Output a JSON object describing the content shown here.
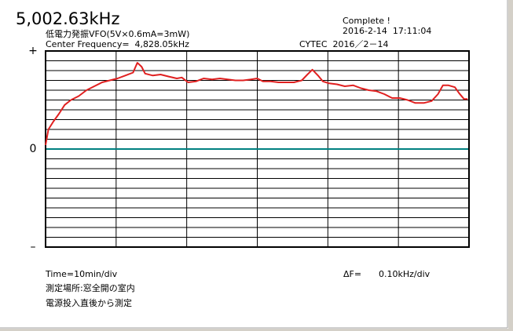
{
  "chart_data": {
    "type": "line",
    "title": "5,002.63kHz",
    "subtitle": "低電力発振VFO(5V×0.6mA=3mW)",
    "center_frequency": "Center Frequency=  4,828.05kHz",
    "status": "Complete !",
    "timestamp": "2016-2-14  17:11:04",
    "maker": "CYTEC  2016／2－14",
    "x_scale": "Time=10min/div",
    "y_scale_label": "ΔF=",
    "y_scale": "0.10kHz/div",
    "notes": [
      "測定場所:窓全開の室内",
      "電源投入直後から測定"
    ],
    "x": [
      0,
      0.4,
      1.1,
      1.9,
      2.7,
      3.6,
      4.7,
      5.8,
      6.9,
      8.0,
      9.1,
      10.2,
      11.3,
      12.4,
      13.0,
      13.6,
      14.1,
      15.2,
      16.3,
      17.4,
      18.6,
      19.3,
      20.2,
      21.3,
      22.4,
      23.6,
      24.7,
      25.8,
      26.9,
      28.0,
      29.1,
      30.0,
      30.8,
      31.9,
      33.0,
      34.1,
      35.2,
      36.3,
      37.1,
      37.8,
      38.6,
      39.3,
      40.2,
      41.3,
      42.4,
      43.6,
      44.7,
      45.8,
      46.9,
      48.0,
      49.1,
      50.2,
      51.3,
      52.4,
      53.6,
      54.7,
      55.6,
      56.3,
      57.1,
      58.0,
      58.6,
      59.3,
      59.8
    ],
    "series": [
      {
        "color": "#e02020",
        "values": [
          0.4,
          2.0,
          2.8,
          3.6,
          4.5,
          5.0,
          5.4,
          6.0,
          6.4,
          6.8,
          7.0,
          7.2,
          7.5,
          7.8,
          8.8,
          8.4,
          7.7,
          7.5,
          7.6,
          7.4,
          7.2,
          7.3,
          6.8,
          6.9,
          7.2,
          7.1,
          7.2,
          7.1,
          7.0,
          7.0,
          7.1,
          7.2,
          6.9,
          6.9,
          6.8,
          6.8,
          6.8,
          7.0,
          7.6,
          8.1,
          7.5,
          6.9,
          6.7,
          6.6,
          6.4,
          6.5,
          6.2,
          6.0,
          5.9,
          5.6,
          5.2,
          5.2,
          5.0,
          4.7,
          4.7,
          4.9,
          5.6,
          6.5,
          6.5,
          6.3,
          5.7,
          5.1,
          5.1
        ]
      }
    ],
    "xlim": [
      0,
      60
    ],
    "ylim": [
      -10,
      10
    ],
    "yticks": [
      {
        "value": 10,
        "label": "+"
      },
      0,
      {
        "value": -10,
        "label": "–"
      }
    ],
    "zero_color": "#008080",
    "grid": {
      "x_divisions": 6,
      "y_divisions": 20
    }
  }
}
